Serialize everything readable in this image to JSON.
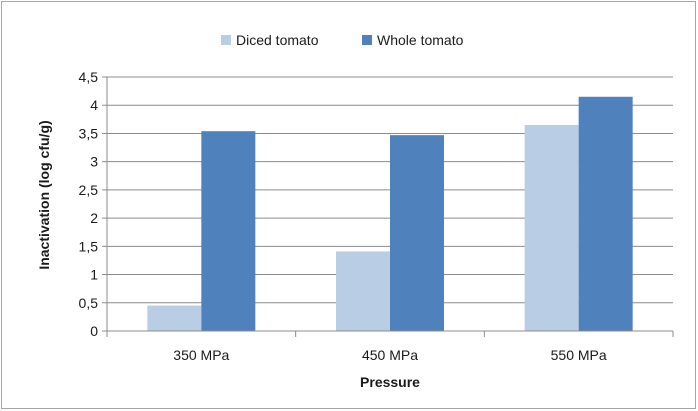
{
  "chart_data": {
    "type": "bar",
    "categories": [
      "350 MPa",
      "450 MPa",
      "550 MPa"
    ],
    "series": [
      {
        "name": "Diced tomato",
        "values": [
          0.45,
          1.41,
          3.65
        ],
        "color": "#b9cde5"
      },
      {
        "name": "Whole tomato",
        "values": [
          3.54,
          3.47,
          4.15
        ],
        "color": "#4f81bd"
      }
    ],
    "xlabel": "Pressure",
    "ylabel": "Inactivation (log cfu/g)",
    "ylim": [
      0,
      4.5
    ],
    "yticks": [
      0,
      0.5,
      1,
      1.5,
      2,
      2.5,
      3,
      3.5,
      4,
      4.5
    ],
    "ytick_labels": [
      "0",
      "0,5",
      "1",
      "1,5",
      "2",
      "2,5",
      "3",
      "3,5",
      "4",
      "4,5"
    ],
    "grid": true,
    "legend_position": "top-center"
  }
}
